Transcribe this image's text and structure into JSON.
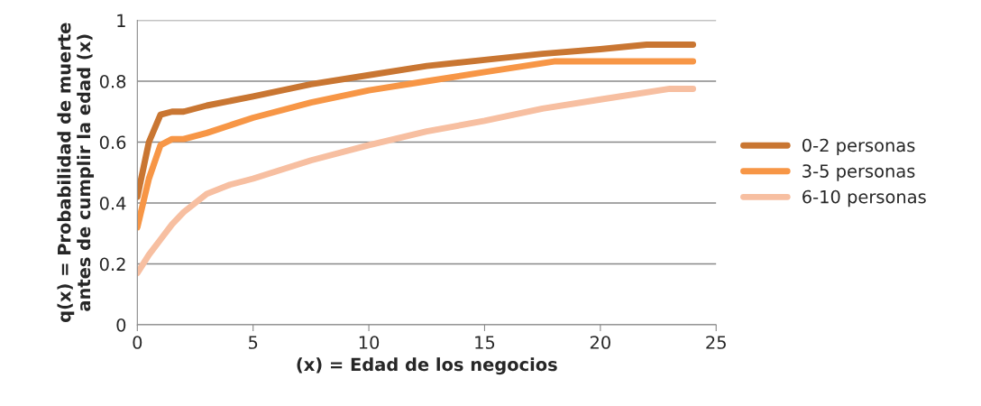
{
  "chart_data": {
    "type": "line",
    "xlabel": "(x) = Edad de los negocios",
    "ylabel": "q(x) = Probabilidad de muerte\nantes de cumplir la edad (x)",
    "xlim": [
      0,
      25
    ],
    "xticks": [
      0,
      5,
      10,
      15,
      20,
      25
    ],
    "ylim": [
      0,
      1
    ],
    "yticks": [
      0,
      0.2,
      0.4,
      0.6,
      0.8,
      1
    ],
    "grid": "y",
    "legend": "right",
    "marker": "none",
    "line_style": "solid",
    "series": [
      {
        "name": "0-2 personas",
        "color": "#c97632",
        "x": [
          0,
          0.5,
          1,
          1.5,
          2,
          3,
          5,
          7.5,
          10,
          12.5,
          15,
          17.5,
          20,
          22,
          24
        ],
        "values": [
          0.42,
          0.6,
          0.69,
          0.7,
          0.7,
          0.72,
          0.75,
          0.79,
          0.82,
          0.85,
          0.87,
          0.89,
          0.905,
          0.92,
          0.92
        ]
      },
      {
        "name": "3-5 personas",
        "color": "#f79646",
        "x": [
          0,
          0.5,
          1,
          1.5,
          2,
          3,
          5,
          7.5,
          10,
          12.5,
          15,
          18,
          20,
          22,
          24
        ],
        "values": [
          0.32,
          0.48,
          0.59,
          0.61,
          0.61,
          0.63,
          0.68,
          0.73,
          0.77,
          0.8,
          0.83,
          0.865,
          0.865,
          0.865,
          0.865
        ]
      },
      {
        "name": "6-10 personas",
        "color": "#f7bfa1",
        "x": [
          0,
          0.5,
          1,
          1.5,
          2,
          3,
          4,
          5,
          7.5,
          10,
          12.5,
          15,
          17.5,
          20,
          23,
          24
        ],
        "values": [
          0.17,
          0.23,
          0.28,
          0.33,
          0.37,
          0.43,
          0.46,
          0.48,
          0.54,
          0.59,
          0.635,
          0.67,
          0.71,
          0.74,
          0.775,
          0.775
        ]
      }
    ]
  }
}
